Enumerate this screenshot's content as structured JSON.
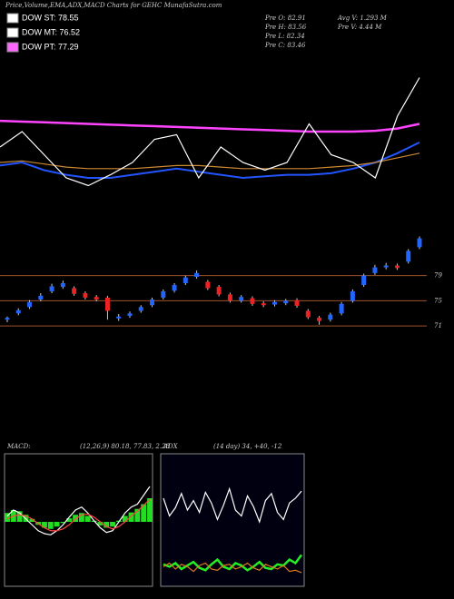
{
  "header": {
    "title": "Price,Volume,EMA,ADX,MACD Charts for GEHC MunafaSutra.com",
    "legend": [
      {
        "name": "DOW ST: 78.55",
        "color": "#ffffff"
      },
      {
        "name": "DOW MT: 76.52",
        "color": "#ffffff"
      },
      {
        "name": "DOW PT: 77.29",
        "color": "#ff66ff"
      }
    ],
    "info": [
      "Pre  O: 82.91",
      "Pre  H: 83.56",
      "Pre  L: 82.34",
      "Pre  C: 83.46",
      "Avg  V: 1.293  M",
      "Pre  V: 4.44  M"
    ]
  },
  "chart_data": [
    {
      "type": "line",
      "ylim": [
        0,
        100
      ],
      "series": [
        {
          "name": "EMA long",
          "color": "#ff44ff",
          "values": [
            57,
            56.5,
            56,
            55.5,
            55,
            54.5,
            54,
            53.5,
            53,
            52.5,
            52,
            51.5,
            51,
            50.5,
            50,
            50,
            50,
            50.5,
            52,
            55
          ]
        },
        {
          "name": "EMA short",
          "color": "#2255ff",
          "values": [
            28,
            30,
            25,
            22,
            20,
            20,
            22,
            24,
            26,
            24,
            22,
            20,
            21,
            22,
            22,
            23,
            26,
            30,
            36,
            43
          ]
        },
        {
          "name": "EMA mid",
          "color": "#cc8833",
          "values": [
            30,
            31,
            29,
            27,
            26,
            26,
            26,
            27,
            28,
            28,
            27,
            26,
            26,
            26,
            26,
            27,
            28,
            30,
            33,
            36
          ]
        },
        {
          "name": "Price",
          "color": "#ffffff",
          "values": [
            40,
            50,
            35,
            20,
            15,
            22,
            30,
            45,
            48,
            20,
            40,
            30,
            25,
            30,
            55,
            35,
            30,
            20,
            60,
            85
          ]
        }
      ]
    },
    {
      "type": "candlestick",
      "ylim": [
        68,
        86
      ],
      "yticks": [
        71,
        75,
        79
      ],
      "grid": true,
      "up_color": "#2266ff",
      "down_color": "#ee2222",
      "open": [
        72.0,
        73.0,
        74.0,
        75.2,
        76.5,
        77.2,
        77.0,
        76.2,
        75.6,
        75.5,
        72.2,
        72.6,
        73.4,
        74.3,
        75.5,
        76.6,
        77.8,
        78.8,
        78.0,
        77.2,
        76.0,
        75.0,
        75.4,
        74.6,
        74.4,
        74.6,
        75.1,
        73.4,
        72.3,
        72.0,
        73.0,
        75.0,
        77.5,
        79.4,
        80.3,
        80.6,
        81.2,
        83.5
      ],
      "high": [
        72.5,
        73.8,
        75.1,
        76.2,
        77.7,
        78.2,
        77.3,
        76.5,
        75.9,
        75.8,
        72.9,
        73.3,
        74.3,
        75.5,
        76.8,
        77.8,
        79.0,
        79.8,
        78.3,
        77.5,
        76.3,
        75.9,
        75.7,
        74.9,
        75.1,
        75.3,
        75.4,
        73.7,
        72.6,
        73.1,
        74.8,
        76.8,
        79.3,
        80.7,
        81.0,
        80.9,
        83.2,
        85.2
      ],
      "low": [
        71.6,
        72.7,
        73.7,
        74.9,
        76.2,
        76.9,
        75.8,
        75.2,
        74.9,
        72.0,
        71.8,
        72.3,
        73.1,
        74.0,
        75.2,
        76.3,
        77.5,
        78.5,
        76.7,
        75.7,
        74.7,
        74.7,
        74.2,
        74.0,
        74.1,
        74.3,
        73.9,
        72.1,
        71.2,
        71.7,
        72.7,
        74.7,
        77.2,
        79.1,
        80.0,
        79.9,
        80.9,
        83.2
      ],
      "close": [
        72.3,
        73.5,
        74.8,
        75.8,
        77.3,
        77.8,
        76.1,
        75.5,
        75.2,
        73.4,
        72.5,
        73.0,
        74.0,
        75.2,
        76.5,
        77.5,
        78.7,
        79.4,
        77.0,
        76.0,
        75.0,
        75.6,
        74.5,
        74.3,
        74.8,
        75.0,
        74.2,
        72.4,
        71.8,
        72.8,
        74.5,
        76.5,
        79.0,
        80.3,
        80.6,
        80.2,
        82.9,
        84.9
      ]
    },
    {
      "type": "macd",
      "title": "MACD:",
      "subtitle": "(12,26,9) 80.18, 77.83, 2.28",
      "ylim": [
        -10,
        10
      ],
      "series": [
        {
          "name": "Histogram",
          "color": "#22dd22",
          "kind": "bar",
          "values": [
            1.5,
            2,
            1.8,
            1.2,
            0.5,
            -0.5,
            -1,
            -1.2,
            -0.8,
            -0.2,
            0.6,
            1.2,
            1.5,
            1.0,
            0.2,
            -0.6,
            -1.0,
            -0.8,
            0.2,
            1.0,
            1.6,
            2.2,
            3.0,
            4.0
          ]
        },
        {
          "name": "MACD",
          "color": "#ffffff",
          "values": [
            1,
            2,
            1.5,
            0.5,
            -0.5,
            -1.5,
            -2,
            -2.2,
            -1.5,
            -0.5,
            0.8,
            2,
            2.5,
            1.5,
            0.2,
            -1,
            -1.8,
            -1.5,
            0,
            1.5,
            2.5,
            3,
            4.5,
            6
          ]
        },
        {
          "name": "Signal",
          "color": "#ff4444",
          "values": [
            0.5,
            1,
            1.2,
            1,
            0.5,
            -0.3,
            -1,
            -1.5,
            -1.5,
            -1.2,
            -0.5,
            0.5,
            1.2,
            1.3,
            0.8,
            0,
            -0.8,
            -1.2,
            -0.8,
            0,
            1,
            1.8,
            2.8,
            3.8
          ]
        }
      ]
    },
    {
      "type": "adx",
      "title": "ADX",
      "subtitle": "(14 day) 34, +40, -12",
      "ylim": [
        0,
        100
      ],
      "series": [
        {
          "name": "ADX",
          "color": "#ffffff",
          "values": [
            70,
            55,
            62,
            74,
            60,
            68,
            58,
            75,
            66,
            52,
            64,
            78,
            60,
            55,
            72,
            63,
            50,
            68,
            74,
            58,
            52,
            66,
            70,
            76
          ]
        },
        {
          "name": "+DI",
          "color": "#22ee22",
          "values": [
            14,
            12,
            15,
            10,
            13,
            16,
            11,
            9,
            14,
            18,
            12,
            10,
            15,
            13,
            9,
            12,
            16,
            11,
            10,
            14,
            13,
            18,
            15,
            22
          ]
        },
        {
          "name": "-DI",
          "color": "#dd7722",
          "values": [
            12,
            15,
            10,
            14,
            12,
            8,
            13,
            15,
            10,
            9,
            13,
            14,
            10,
            12,
            15,
            11,
            9,
            14,
            12,
            10,
            13,
            8,
            9,
            7
          ]
        }
      ]
    }
  ]
}
